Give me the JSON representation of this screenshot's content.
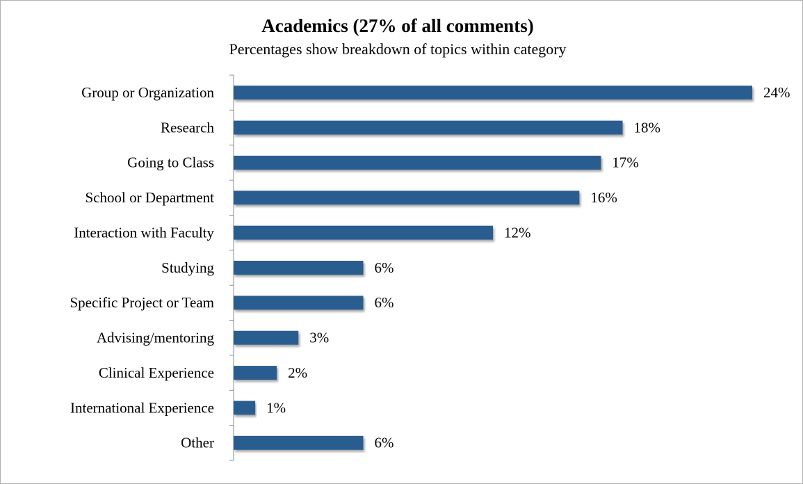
{
  "chart_data": {
    "type": "barh",
    "title": "Academics (27% of all comments)",
    "subtitle": "Percentages show breakdown of topics within category",
    "categories": [
      "Group or Organization",
      "Research",
      "Going to Class",
      "School or Department",
      "Interaction with Faculty",
      "Studying",
      "Specific Project or Team",
      "Advising/mentoring",
      "Clinical Experience",
      "International Experience",
      "Other"
    ],
    "values": [
      24,
      18,
      17,
      16,
      12,
      6,
      6,
      3,
      2,
      1,
      6
    ],
    "value_labels": [
      "24%",
      "18%",
      "17%",
      "16%",
      "12%",
      "6%",
      "6%",
      "3%",
      "2%",
      "1%",
      "6%"
    ],
    "color": "#2c5d8f"
  }
}
